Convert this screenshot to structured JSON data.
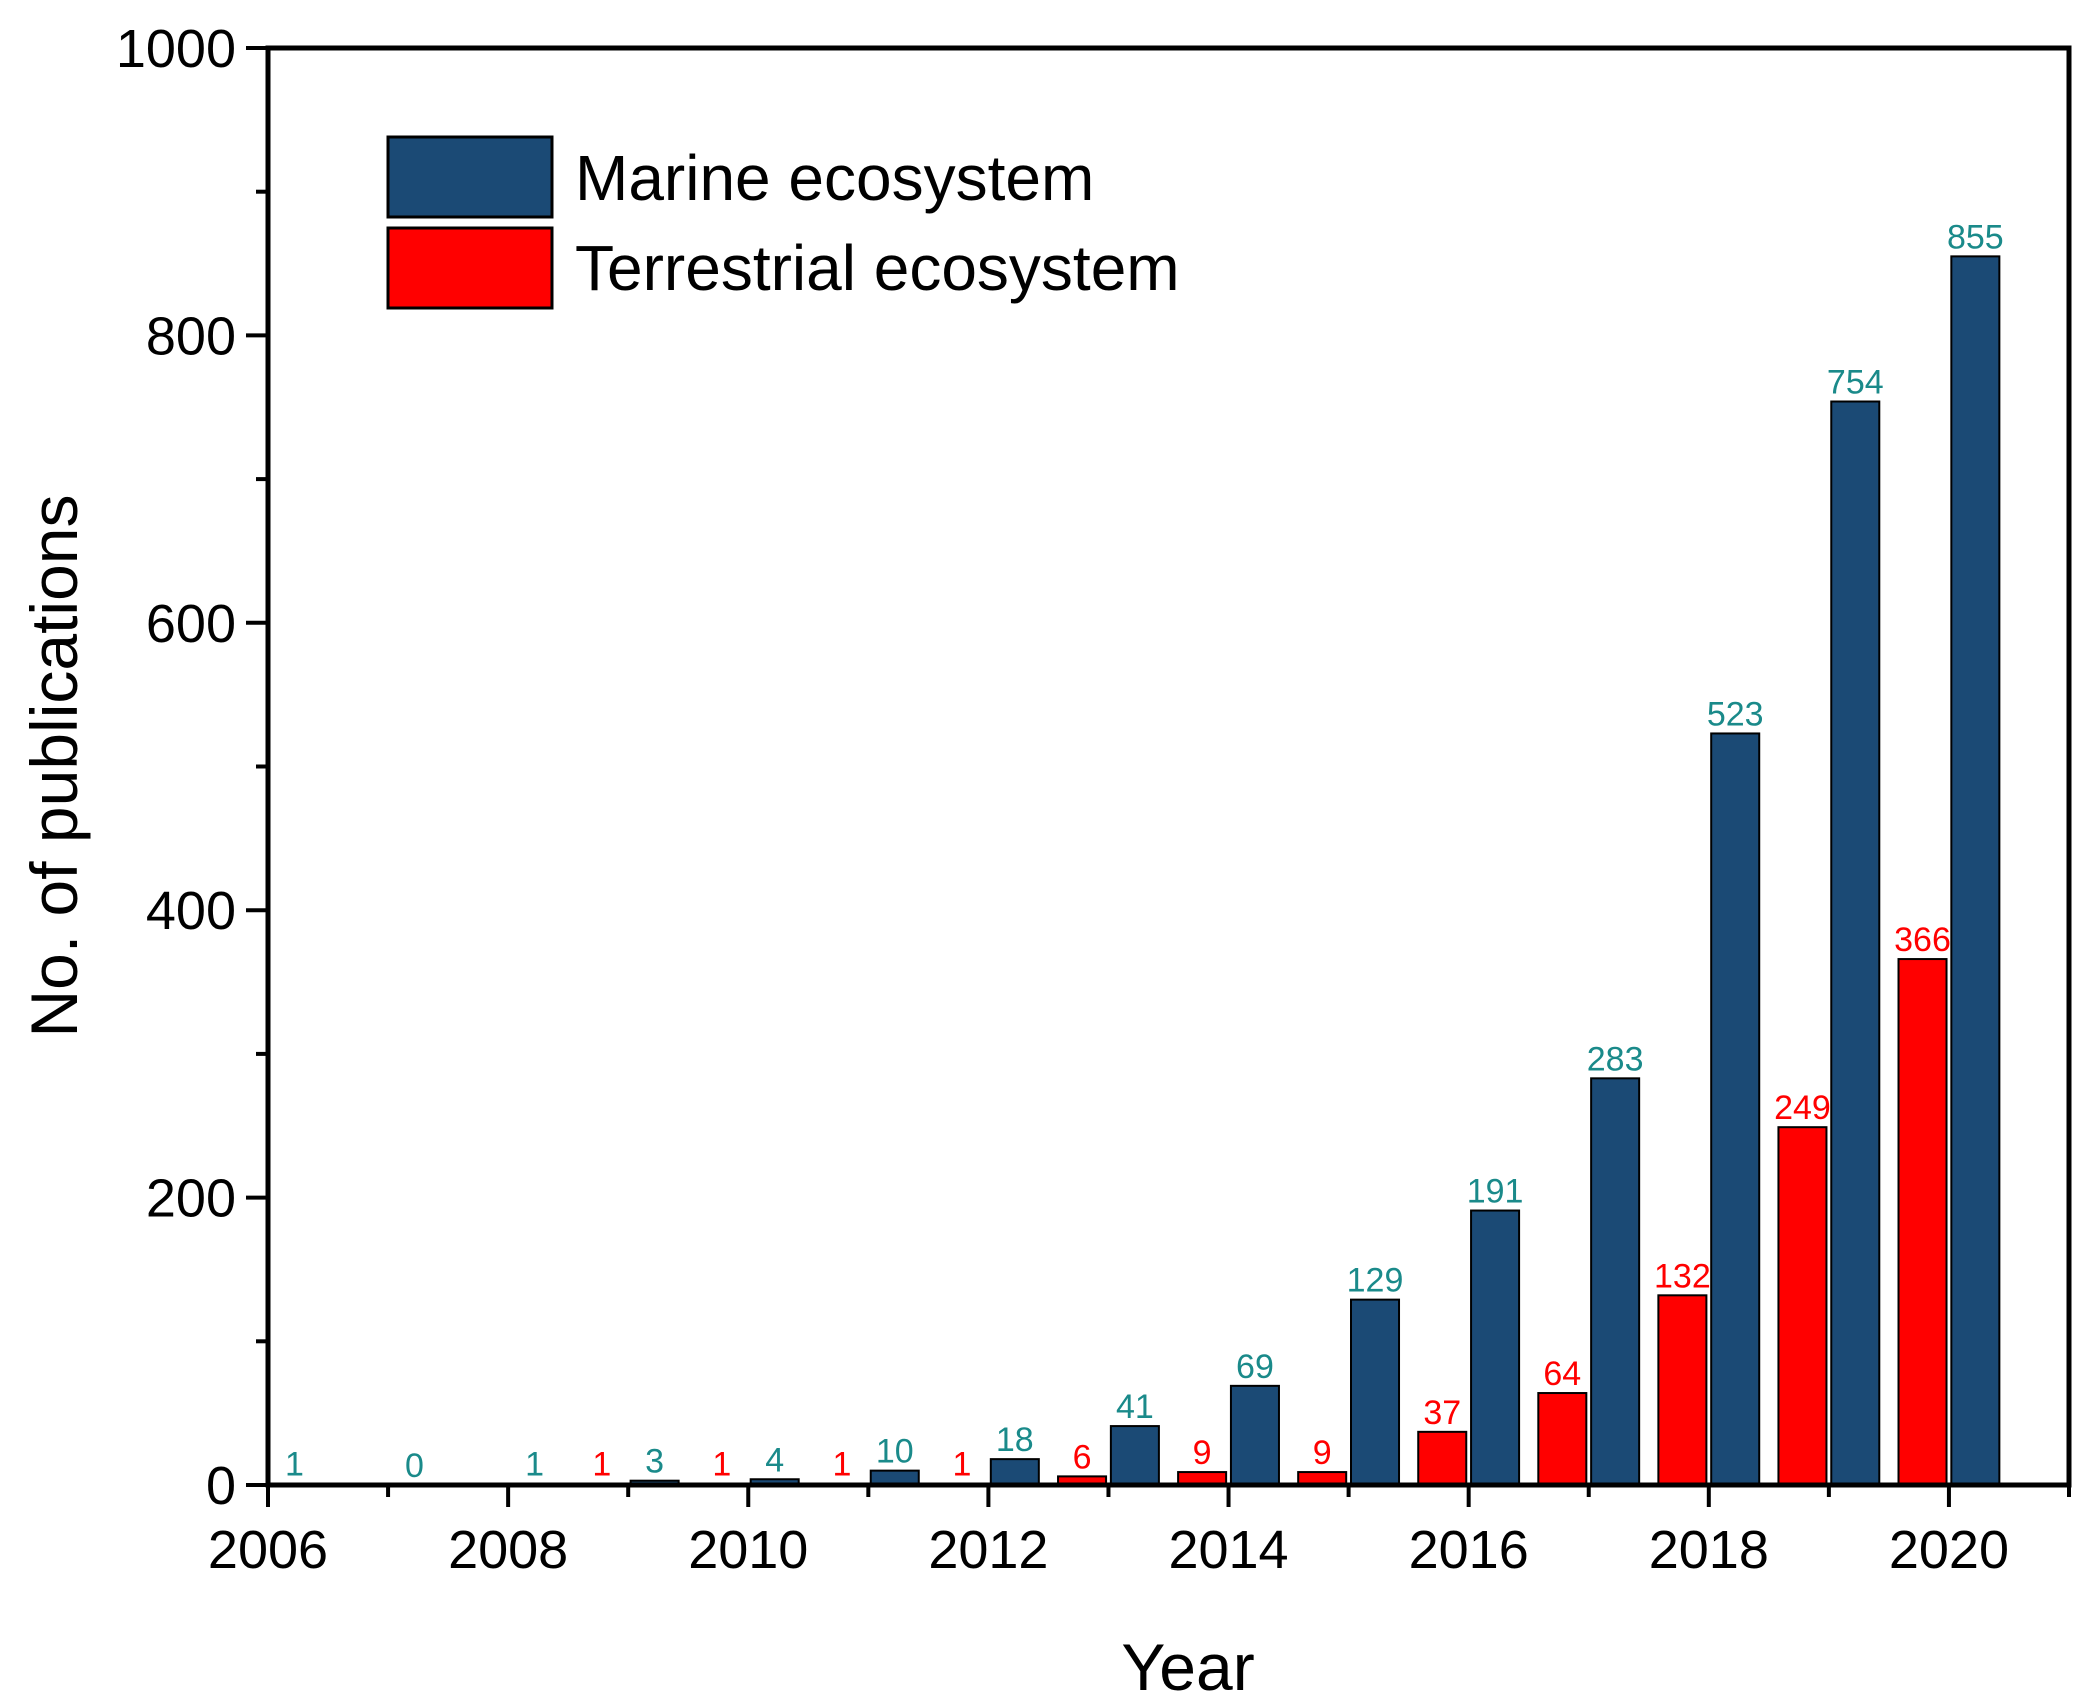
{
  "chart_data": {
    "type": "bar",
    "title": "",
    "xlabel": "Year",
    "ylabel": "No. of publications",
    "xlim": [
      2006,
      2021
    ],
    "ylim": [
      0,
      1000
    ],
    "x_ticks": [
      2006,
      2008,
      2010,
      2012,
      2014,
      2016,
      2018,
      2020
    ],
    "y_ticks": [
      0,
      200,
      400,
      600,
      800,
      1000
    ],
    "legend_position": "top-left",
    "series": [
      {
        "name": "Marine ecosystem",
        "color": "#1b4a75",
        "label_color": "#1a8a8a",
        "x": [
          2006,
          2007,
          2008,
          2009,
          2010,
          2011,
          2012,
          2013,
          2014,
          2015,
          2016,
          2017,
          2018,
          2019,
          2020
        ],
        "values": [
          1,
          0,
          1,
          3,
          4,
          10,
          18,
          41,
          69,
          129,
          191,
          283,
          523,
          754,
          855
        ]
      },
      {
        "name": "Terrestrial ecosystem",
        "color": "#ff0000",
        "label_color": "#ff0000",
        "x": [
          2009,
          2010,
          2011,
          2012,
          2013,
          2014,
          2015,
          2016,
          2017,
          2018,
          2019,
          2020
        ],
        "values": [
          1,
          1,
          1,
          1,
          6,
          9,
          9,
          37,
          64,
          132,
          249,
          366
        ]
      }
    ]
  }
}
